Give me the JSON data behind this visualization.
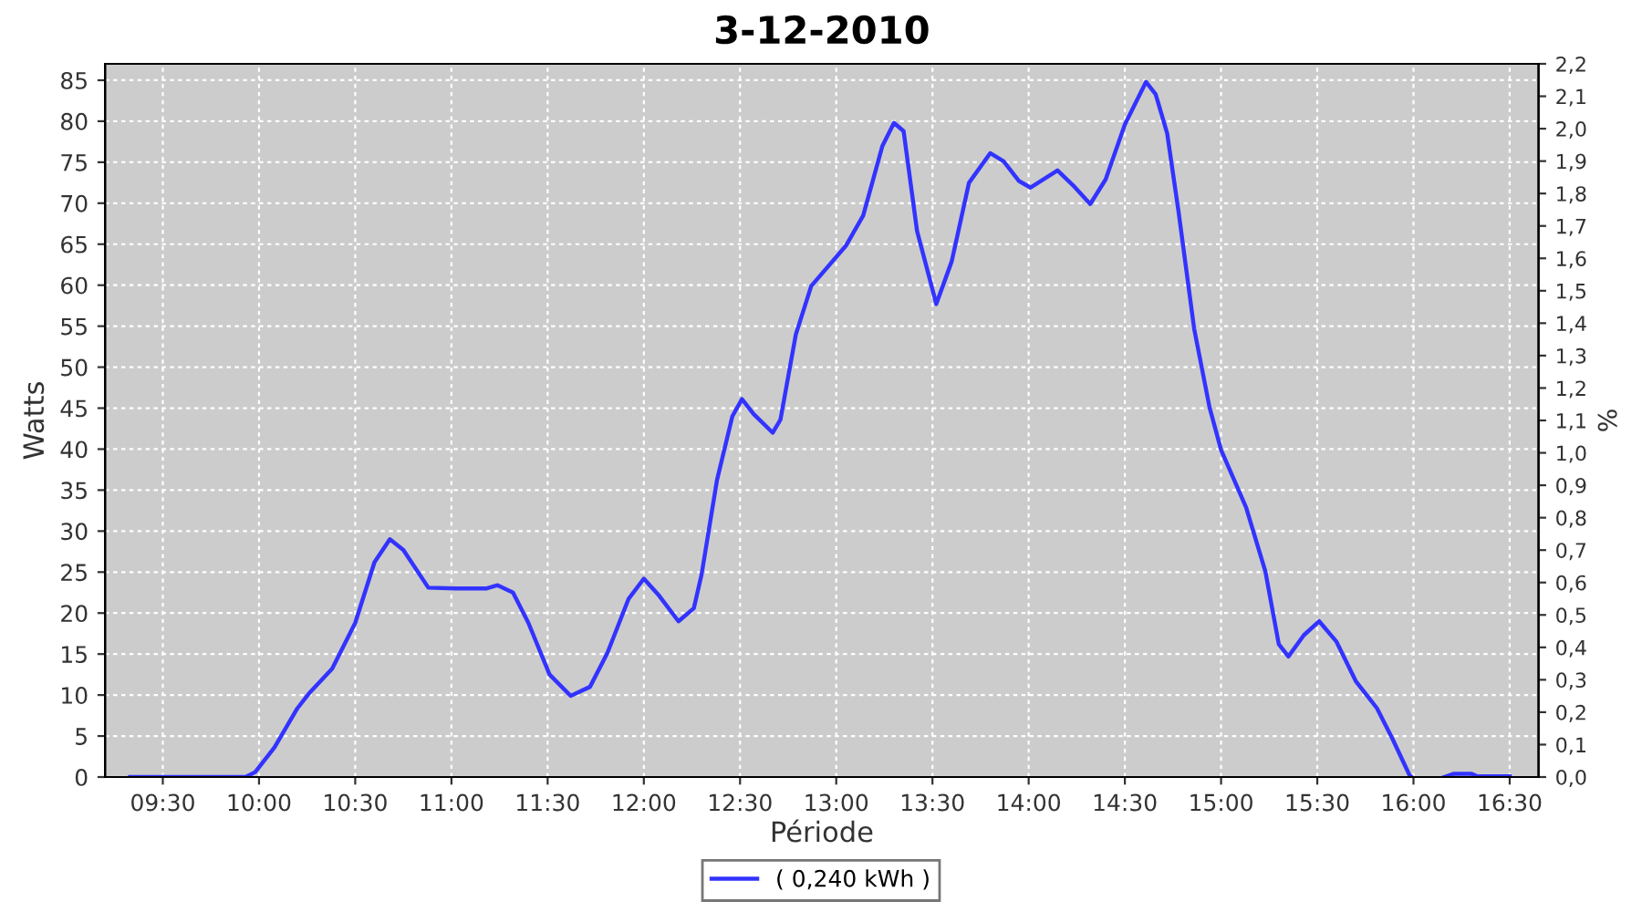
{
  "chart_data": {
    "type": "line",
    "title": "3-12-2010",
    "xlabel": "Période",
    "ylabel": "Watts",
    "y2label": "%",
    "x": [
      9.33,
      9.93,
      9.98,
      10.08,
      10.2,
      10.26,
      10.38,
      10.5,
      10.6,
      10.68,
      10.75,
      10.88,
      11.02,
      11.18,
      11.24,
      11.32,
      11.4,
      11.51,
      11.62,
      11.72,
      11.81,
      11.92,
      12.0,
      12.08,
      12.18,
      12.26,
      12.3,
      12.38,
      12.46,
      12.51,
      12.57,
      12.67,
      12.71,
      12.79,
      12.87,
      13.05,
      13.14,
      13.24,
      13.3,
      13.35,
      13.42,
      13.52,
      13.6,
      13.69,
      13.8,
      13.87,
      13.95,
      14.01,
      14.15,
      14.23,
      14.32,
      14.4,
      14.5,
      14.61,
      14.66,
      14.72,
      14.78,
      14.86,
      14.94,
      15.0,
      15.13,
      15.23,
      15.3,
      15.35,
      15.43,
      15.51,
      15.6,
      15.7,
      15.81,
      15.89,
      15.98,
      15.99,
      16.07,
      16.16,
      16.21,
      16.3,
      16.33,
      16.5
    ],
    "series": [
      {
        "name": "( 0,240 kWh )",
        "color": "#3333ff",
        "values": [
          0,
          0,
          0.6,
          3.6,
          8.4,
          10.2,
          13.2,
          18.8,
          26.2,
          29.0,
          27.7,
          23.1,
          23.0,
          23.0,
          23.4,
          22.5,
          18.8,
          12.5,
          9.9,
          11.0,
          15.1,
          21.7,
          24.2,
          22.1,
          19.0,
          20.6,
          24.7,
          36.2,
          44.0,
          46.1,
          44.3,
          42.0,
          43.6,
          54.0,
          59.9,
          64.8,
          68.5,
          77.0,
          79.8,
          78.8,
          66.6,
          57.7,
          62.9,
          72.5,
          76.1,
          75.1,
          72.7,
          71.9,
          74.0,
          72.2,
          69.9,
          72.9,
          79.6,
          84.8,
          83.3,
          78.5,
          68.8,
          54.7,
          45.1,
          39.9,
          32.9,
          25.1,
          16.2,
          14.7,
          17.3,
          19.0,
          16.5,
          11.7,
          8.4,
          4.7,
          0.2,
          0,
          null,
          0,
          0.4,
          0.4,
          0.1,
          0.1
        ]
      }
    ],
    "xlim": [
      9.2,
      16.65
    ],
    "xticks": [
      {
        "value": 9.5,
        "label": "09:30"
      },
      {
        "value": 10,
        "label": "10:00"
      },
      {
        "value": 10.5,
        "label": "10:30"
      },
      {
        "value": 11,
        "label": "11:00"
      },
      {
        "value": 11.5,
        "label": "11:30"
      },
      {
        "value": 12,
        "label": "12:00"
      },
      {
        "value": 12.5,
        "label": "12:30"
      },
      {
        "value": 13,
        "label": "13:00"
      },
      {
        "value": 13.5,
        "label": "13:30"
      },
      {
        "value": 14,
        "label": "14:00"
      },
      {
        "value": 14.5,
        "label": "14:30"
      },
      {
        "value": 15,
        "label": "15:00"
      },
      {
        "value": 15.5,
        "label": "15:30"
      },
      {
        "value": 16,
        "label": "16:00"
      },
      {
        "value": 16.5,
        "label": "16:30"
      }
    ],
    "ylim": [
      0,
      87
    ],
    "yticks": [
      0,
      5,
      10,
      15,
      20,
      25,
      30,
      35,
      40,
      45,
      50,
      55,
      60,
      65,
      70,
      75,
      80,
      85
    ],
    "y2lim": [
      0,
      2.2
    ],
    "y2ticks": [
      {
        "value": 0,
        "label": "0,0"
      },
      {
        "value": 0.1,
        "label": "0,1"
      },
      {
        "value": 0.2,
        "label": "0,2"
      },
      {
        "value": 0.3,
        "label": "0,3"
      },
      {
        "value": 0.4,
        "label": "0,4"
      },
      {
        "value": 0.5,
        "label": "0,5"
      },
      {
        "value": 0.6,
        "label": "0,6"
      },
      {
        "value": 0.7,
        "label": "0,7"
      },
      {
        "value": 0.8,
        "label": "0,8"
      },
      {
        "value": 0.9,
        "label": "0,9"
      },
      {
        "value": 1.0,
        "label": "1,0"
      },
      {
        "value": 1.1,
        "label": "1,1"
      },
      {
        "value": 1.2,
        "label": "1,2"
      },
      {
        "value": 1.3,
        "label": "1,3"
      },
      {
        "value": 1.4,
        "label": "1,4"
      },
      {
        "value": 1.5,
        "label": "1,5"
      },
      {
        "value": 1.6,
        "label": "1,6"
      },
      {
        "value": 1.7,
        "label": "1,7"
      },
      {
        "value": 1.8,
        "label": "1,8"
      },
      {
        "value": 1.9,
        "label": "1,9"
      },
      {
        "value": 2.0,
        "label": "2,0"
      },
      {
        "value": 2.1,
        "label": "2,1"
      },
      {
        "value": 2.2,
        "label": "2,2"
      }
    ],
    "grid": true,
    "legend": "bottom",
    "marker": "none",
    "line_style": "solid"
  }
}
